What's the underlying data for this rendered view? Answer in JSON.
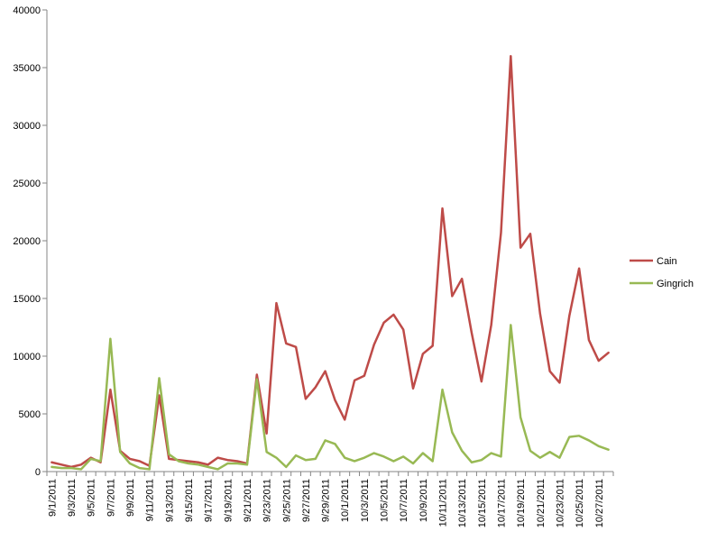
{
  "chart_data": {
    "type": "line",
    "title": "",
    "xlabel": "",
    "ylabel": "",
    "ylim": [
      0,
      40000
    ],
    "y_ticks": [
      0,
      5000,
      10000,
      15000,
      20000,
      25000,
      30000,
      35000,
      40000
    ],
    "grid": false,
    "legend_position": "right",
    "x": [
      "9/1/2011",
      "9/2/2011",
      "9/3/2011",
      "9/4/2011",
      "9/5/2011",
      "9/6/2011",
      "9/7/2011",
      "9/8/2011",
      "9/9/2011",
      "9/10/2011",
      "9/11/2011",
      "9/12/2011",
      "9/13/2011",
      "9/14/2011",
      "9/15/2011",
      "9/16/2011",
      "9/17/2011",
      "9/18/2011",
      "9/19/2011",
      "9/20/2011",
      "9/21/2011",
      "9/22/2011",
      "9/23/2011",
      "9/24/2011",
      "9/25/2011",
      "9/26/2011",
      "9/27/2011",
      "9/28/2011",
      "9/29/2011",
      "9/30/2011",
      "10/1/2011",
      "10/2/2011",
      "10/3/2011",
      "10/4/2011",
      "10/5/2011",
      "10/6/2011",
      "10/7/2011",
      "10/8/2011",
      "10/9/2011",
      "10/10/2011",
      "10/11/2011",
      "10/12/2011",
      "10/13/2011",
      "10/14/2011",
      "10/15/2011",
      "10/16/2011",
      "10/17/2011",
      "10/18/2011",
      "10/19/2011",
      "10/20/2011",
      "10/21/2011",
      "10/22/2011",
      "10/23/2011",
      "10/24/2011",
      "10/25/2011",
      "10/26/2011",
      "10/27/2011",
      "10/28/2011"
    ],
    "x_tick_labels": [
      "9/1/2011",
      "9/3/2011",
      "9/5/2011",
      "9/7/2011",
      "9/9/2011",
      "9/11/2011",
      "9/13/2011",
      "9/15/2011",
      "9/17/2011",
      "9/19/2011",
      "9/21/2011",
      "9/23/2011",
      "9/25/2011",
      "9/27/2011",
      "9/29/2011",
      "10/1/2011",
      "10/3/2011",
      "10/5/2011",
      "10/7/2011",
      "10/9/2011",
      "10/11/2011",
      "10/13/2011",
      "10/15/2011",
      "10/17/2011",
      "10/19/2011",
      "10/21/2011",
      "10/23/2011",
      "10/25/2011",
      "10/27/2011"
    ],
    "series": [
      {
        "name": "Cain",
        "color": "#be4b48",
        "values": [
          800,
          600,
          400,
          600,
          1200,
          800,
          7100,
          1800,
          1100,
          900,
          500,
          6600,
          1100,
          1000,
          900,
          800,
          600,
          1200,
          1000,
          900,
          700,
          8400,
          3300,
          14600,
          11100,
          10800,
          6300,
          7300,
          8700,
          6200,
          4500,
          7900,
          8300,
          11000,
          12900,
          13600,
          12300,
          7200,
          10200,
          10900,
          22800,
          15200,
          16700,
          12000,
          7800,
          12700,
          20700,
          36000,
          19400,
          20600,
          13700,
          8700,
          7700,
          13500,
          17600,
          11400,
          9600,
          10300
        ]
      },
      {
        "name": "Gingrich",
        "color": "#98b954",
        "values": [
          400,
          300,
          300,
          200,
          1100,
          900,
          11500,
          1700,
          700,
          300,
          200,
          8100,
          1500,
          900,
          700,
          600,
          400,
          200,
          700,
          700,
          600,
          8000,
          1700,
          1200,
          400,
          1400,
          1000,
          1100,
          2700,
          2400,
          1200,
          900,
          1200,
          1600,
          1300,
          900,
          1300,
          700,
          1600,
          900,
          7100,
          3400,
          1800,
          800,
          1000,
          1600,
          1300,
          12700,
          4700,
          1800,
          1200,
          1700,
          1200,
          3000,
          3100,
          2700,
          2200,
          1900
        ]
      }
    ]
  }
}
